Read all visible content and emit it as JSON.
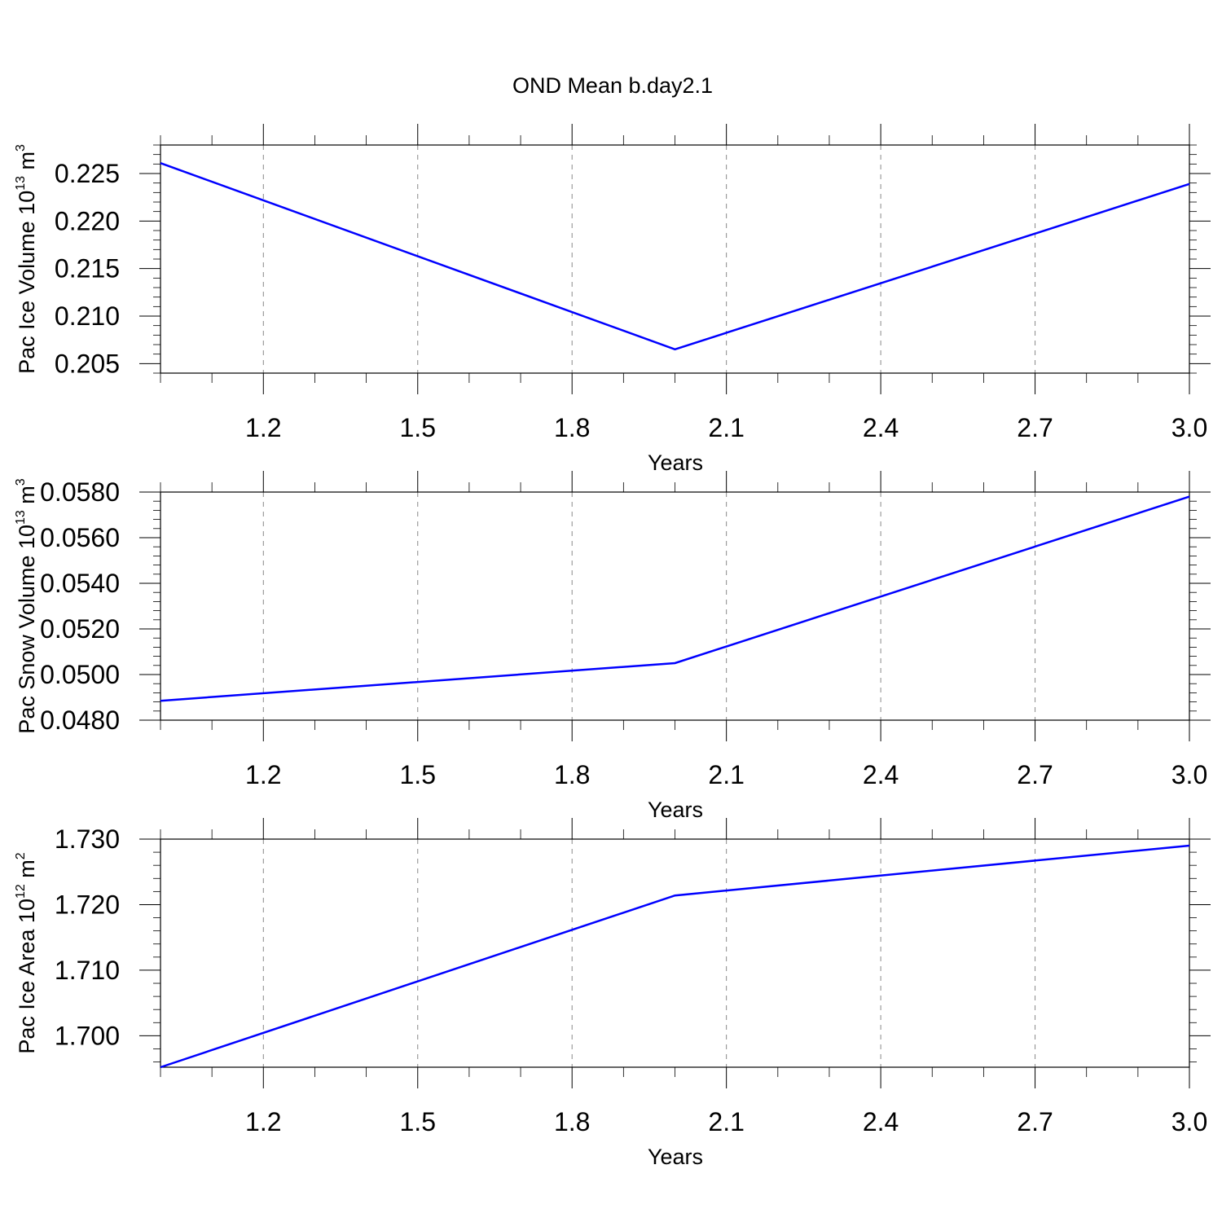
{
  "title": "OND Mean b.day2.1",
  "colors": {
    "line": "#0000ff",
    "frame": "#000000",
    "grid": "#888888"
  },
  "chart_data": [
    {
      "type": "line",
      "xlabel": "Years",
      "ylabel": {
        "text": "Pac Ice Volume 10",
        "exp": "13",
        "unit": " m",
        "unit_exp": "3"
      },
      "xlim": [
        1.0,
        3.0
      ],
      "ylim": [
        0.204,
        0.228
      ],
      "x_ticks": [
        1.2,
        1.5,
        1.8,
        2.1,
        2.4,
        2.7,
        3.0
      ],
      "x_tick_labels": [
        "1.2",
        "1.5",
        "1.8",
        "2.1",
        "2.4",
        "2.7",
        "3.0"
      ],
      "y_ticks": [
        0.205,
        0.21,
        0.215,
        0.22,
        0.225
      ],
      "y_tick_labels": [
        "0.205",
        "0.210",
        "0.215",
        "0.220",
        "0.225"
      ],
      "y_minor_step": 0.001,
      "grid": "vertical-dashed",
      "x": [
        1.0,
        2.0,
        3.0
      ],
      "y": [
        0.2261,
        0.2065,
        0.2239
      ]
    },
    {
      "type": "line",
      "xlabel": "Years",
      "ylabel": {
        "text": "Pac Snow Volume 10",
        "exp": "13",
        "unit": " m",
        "unit_exp": "3"
      },
      "xlim": [
        1.0,
        3.0
      ],
      "ylim": [
        0.048,
        0.058
      ],
      "x_ticks": [
        1.2,
        1.5,
        1.8,
        2.1,
        2.4,
        2.7,
        3.0
      ],
      "x_tick_labels": [
        "1.2",
        "1.5",
        "1.8",
        "2.1",
        "2.4",
        "2.7",
        "3.0"
      ],
      "y_ticks": [
        0.048,
        0.05,
        0.052,
        0.054,
        0.056,
        0.058
      ],
      "y_tick_labels": [
        "0.0480",
        "0.0500",
        "0.0520",
        "0.0540",
        "0.0560",
        "0.0580"
      ],
      "y_minor_step": 0.0004,
      "grid": "vertical-dashed",
      "x": [
        1.0,
        2.0,
        3.0
      ],
      "y": [
        0.04885,
        0.0505,
        0.0578
      ]
    },
    {
      "type": "line",
      "xlabel": "Years",
      "ylabel": {
        "text": "Pac Ice Area 10",
        "exp": "12",
        "unit": " m",
        "unit_exp": "2"
      },
      "xlim": [
        1.0,
        3.0
      ],
      "ylim": [
        1.6952,
        1.73
      ],
      "x_ticks": [
        1.2,
        1.5,
        1.8,
        2.1,
        2.4,
        2.7,
        3.0
      ],
      "x_tick_labels": [
        "1.2",
        "1.5",
        "1.8",
        "2.1",
        "2.4",
        "2.7",
        "3.0"
      ],
      "y_ticks": [
        1.7,
        1.71,
        1.72,
        1.73
      ],
      "y_tick_labels": [
        "1.700",
        "1.710",
        "1.720",
        "1.730"
      ],
      "y_minor_step": 0.002,
      "grid": "vertical-dashed",
      "x": [
        1.0,
        2.0,
        3.0
      ],
      "y": [
        1.6952,
        1.7214,
        1.729
      ]
    }
  ]
}
